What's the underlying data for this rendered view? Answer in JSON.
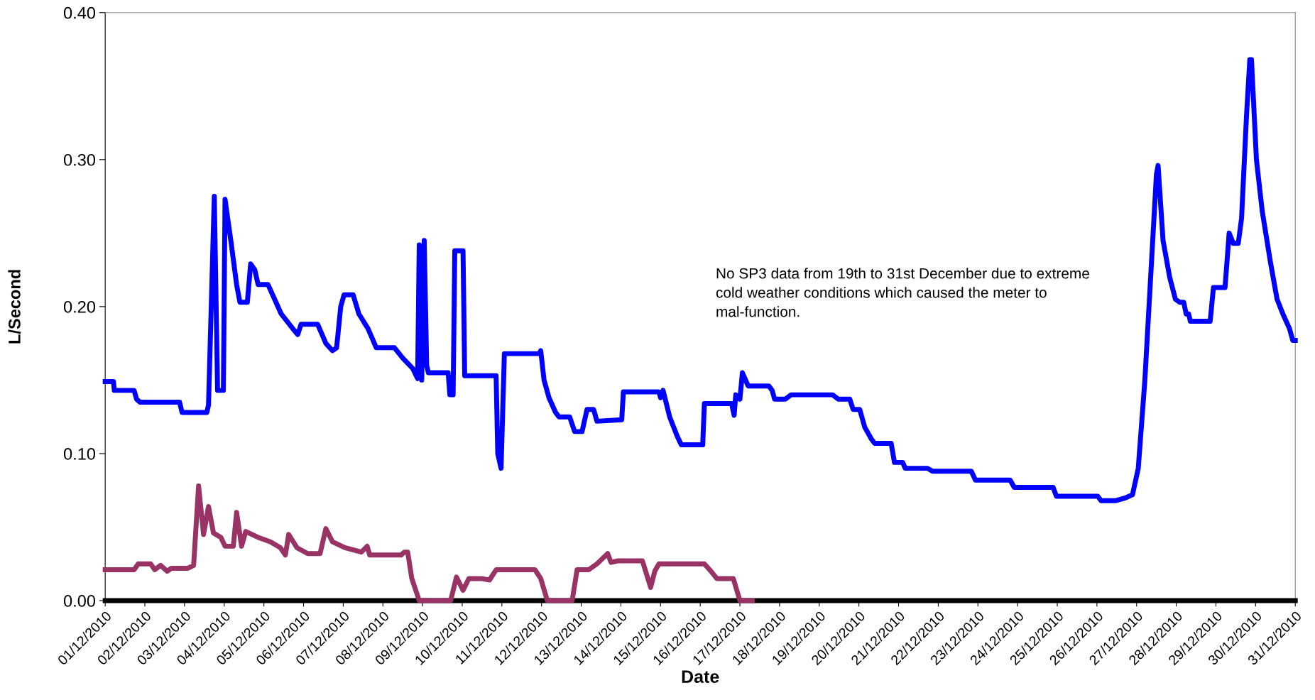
{
  "chart_data": {
    "type": "line",
    "xlabel": "Date",
    "ylabel": "L/Second",
    "annotations": [
      "No SP3 data from 19th to 31st December due to extreme cold weather conditions which caused the meter to mal-function."
    ],
    "xlim": [
      "2010-12-01",
      "2010-12-31"
    ],
    "xticks": [
      {
        "value": "2010-12-01",
        "label": "01/12/2010"
      },
      {
        "value": "2010-12-02",
        "label": "02/12/2010"
      },
      {
        "value": "2010-12-03",
        "label": "03/12/2010"
      },
      {
        "value": "2010-12-04",
        "label": "04/12/2010"
      },
      {
        "value": "2010-12-05",
        "label": "05/12/2010"
      },
      {
        "value": "2010-12-06",
        "label": "06/12/2010"
      },
      {
        "value": "2010-12-07",
        "label": "07/12/2010"
      },
      {
        "value": "2010-12-08",
        "label": "08/12/2010"
      },
      {
        "value": "2010-12-09",
        "label": "09/12/2010"
      },
      {
        "value": "2010-12-10",
        "label": "10/12/2010"
      },
      {
        "value": "2010-12-11",
        "label": "11/12/2010"
      },
      {
        "value": "2010-12-12",
        "label": "12/12/2010"
      },
      {
        "value": "2010-12-13",
        "label": "13/12/2010"
      },
      {
        "value": "2010-12-14",
        "label": "14/12/2010"
      },
      {
        "value": "2010-12-15",
        "label": "15/12/2010"
      },
      {
        "value": "2010-12-16",
        "label": "16/12/2010"
      },
      {
        "value": "2010-12-17",
        "label": "17/12/2010"
      },
      {
        "value": "2010-12-18",
        "label": "18/12/2010"
      },
      {
        "value": "2010-12-19",
        "label": "19/12/2010"
      },
      {
        "value": "2010-12-20",
        "label": "20/12/2010"
      },
      {
        "value": "2010-12-21",
        "label": "21/12/2010"
      },
      {
        "value": "2010-12-22",
        "label": "22/12/2010"
      },
      {
        "value": "2010-12-23",
        "label": "23/12/2010"
      },
      {
        "value": "2010-12-24",
        "label": "24/12/2010"
      },
      {
        "value": "2010-12-25",
        "label": "25/12/2010"
      },
      {
        "value": "2010-12-26",
        "label": "26/12/2010"
      },
      {
        "value": "2010-12-27",
        "label": "27/12/2010"
      },
      {
        "value": "2010-12-28",
        "label": "28/12/2010"
      },
      {
        "value": "2010-12-29",
        "label": "29/12/2010"
      },
      {
        "value": "2010-12-30",
        "label": "30/12/2010"
      },
      {
        "value": "2010-12-31",
        "label": "31/12/2010"
      }
    ],
    "ylim": [
      0,
      0.4
    ],
    "yticks": [
      {
        "value": 0,
        "label": "0.00"
      },
      {
        "value": 0.1,
        "label": "0.10"
      },
      {
        "value": 0.2,
        "label": "0.20"
      },
      {
        "value": 0.3,
        "label": "0.30"
      },
      {
        "value": 0.4,
        "label": "0.40"
      }
    ],
    "grid": false,
    "marker": "none",
    "line_style": "solid",
    "series": [
      {
        "color": "#0000ff",
        "x": [
          "2010-12-01T00:00",
          "2010-12-01T05:00",
          "2010-12-01T05:30",
          "2010-12-01T17:30",
          "2010-12-01T19:00",
          "2010-12-01T21:00",
          "2010-12-02T21:00",
          "2010-12-02T22:30",
          "2010-12-03T13:30",
          "2010-12-03T14:30",
          "2010-12-03T18:00",
          "2010-12-03T20:00",
          "2010-12-03T23:30",
          "2010-12-04T00:30",
          "2010-12-04T04:00",
          "2010-12-04T07:30",
          "2010-12-04T09:30",
          "2010-12-04T14:00",
          "2010-12-04T16:00",
          "2010-12-04T18:30",
          "2010-12-04T20:30",
          "2010-12-05T02:30",
          "2010-12-05T06:30",
          "2010-12-05T10:30",
          "2010-12-05T17:30",
          "2010-12-05T20:30",
          "2010-12-05T22:30",
          "2010-12-06T08:30",
          "2010-12-06T13:30",
          "2010-12-06T17:30",
          "2010-12-06T20:00",
          "2010-12-06T22:30",
          "2010-12-07T00:30",
          "2010-12-07T06:00",
          "2010-12-07T09:30",
          "2010-12-07T15:00",
          "2010-12-07T20:00",
          "2010-12-08T07:00",
          "2010-12-08T12:00",
          "2010-12-08T18:00",
          "2010-12-08T21:00",
          "2010-12-08T22:00",
          "2010-12-08T23:30",
          "2010-12-09T01:00",
          "2010-12-09T02:30",
          "2010-12-09T03:30",
          "2010-12-09T15:30",
          "2010-12-09T16:30",
          "2010-12-09T18:30",
          "2010-12-09T19:30",
          "2010-12-10T00:30",
          "2010-12-10T01:30",
          "2010-12-10T20:30",
          "2010-12-10T21:30",
          "2010-12-10T23:30",
          "2010-12-11T01:30",
          "2010-12-11T22:30",
          "2010-12-11T23:30",
          "2010-12-12T01:30",
          "2010-12-12T04:30",
          "2010-12-12T08:30",
          "2010-12-12T10:30",
          "2010-12-12T17:00",
          "2010-12-12T20:00",
          "2010-12-13T00:30",
          "2010-12-13T03:30",
          "2010-12-13T07:30",
          "2010-12-13T09:30",
          "2010-12-14T00:30",
          "2010-12-14T01:30",
          "2010-12-14T23:00",
          "2010-12-15T00:00",
          "2010-12-15T01:30",
          "2010-12-15T05:30",
          "2010-12-15T10:00",
          "2010-12-15T12:30",
          "2010-12-16T01:30",
          "2010-12-16T02:30",
          "2010-12-16T19:00",
          "2010-12-16T20:30",
          "2010-12-16T21:30",
          "2010-12-17T00:00",
          "2010-12-17T01:30",
          "2010-12-17T05:00",
          "2010-12-17T17:30",
          "2010-12-17T19:30",
          "2010-12-17T21:00",
          "2010-12-18T03:30",
          "2010-12-18T07:00",
          "2010-12-19T08:00",
          "2010-12-19T11:30",
          "2010-12-19T18:30",
          "2010-12-19T20:30",
          "2010-12-20T00:30",
          "2010-12-20T03:30",
          "2010-12-20T07:30",
          "2010-12-20T09:30",
          "2010-12-20T19:30",
          "2010-12-20T21:30",
          "2010-12-21T02:30",
          "2010-12-21T04:00",
          "2010-12-21T17:30",
          "2010-12-21T20:30",
          "2010-12-22T20:00",
          "2010-12-22T22:30",
          "2010-12-23T19:30",
          "2010-12-23T22:00",
          "2010-12-24T21:30",
          "2010-12-24T23:30",
          "2010-12-26T00:30",
          "2010-12-26T02:30",
          "2010-12-26T11:30",
          "2010-12-26T17:30",
          "2010-12-26T21:30",
          "2010-12-27T01:00",
          "2010-12-27T05:00",
          "2010-12-27T08:30",
          "2010-12-27T12:00",
          "2010-12-27T13:00",
          "2010-12-27T16:00",
          "2010-12-27T20:00",
          "2010-12-27T23:30",
          "2010-12-28T02:00",
          "2010-12-28T04:30",
          "2010-12-28T06:00",
          "2010-12-28T07:30",
          "2010-12-28T08:30",
          "2010-12-28T20:30",
          "2010-12-28T22:30",
          "2010-12-29T05:30",
          "2010-12-29T08:00",
          "2010-12-29T10:30",
          "2010-12-29T13:30",
          "2010-12-29T15:30",
          "2010-12-29T18:30",
          "2010-12-29T20:30",
          "2010-12-29T21:30",
          "2010-12-30T00:30",
          "2010-12-30T04:00",
          "2010-12-30T09:00",
          "2010-12-30T13:00",
          "2010-12-30T16:30",
          "2010-12-30T20:30",
          "2010-12-30T22:30",
          "2010-12-31T00:00"
        ],
        "values": [
          0.149,
          0.149,
          0.143,
          0.143,
          0.137,
          0.135,
          0.135,
          0.128,
          0.128,
          0.133,
          0.275,
          0.143,
          0.143,
          0.273,
          0.245,
          0.215,
          0.203,
          0.203,
          0.229,
          0.225,
          0.215,
          0.215,
          0.205,
          0.195,
          0.185,
          0.181,
          0.188,
          0.188,
          0.175,
          0.17,
          0.172,
          0.2,
          0.208,
          0.208,
          0.195,
          0.185,
          0.172,
          0.172,
          0.165,
          0.158,
          0.151,
          0.242,
          0.15,
          0.245,
          0.16,
          0.155,
          0.155,
          0.14,
          0.14,
          0.238,
          0.238,
          0.153,
          0.153,
          0.1,
          0.09,
          0.168,
          0.168,
          0.17,
          0.15,
          0.138,
          0.128,
          0.125,
          0.125,
          0.115,
          0.115,
          0.13,
          0.13,
          0.122,
          0.123,
          0.142,
          0.142,
          0.138,
          0.143,
          0.125,
          0.112,
          0.106,
          0.106,
          0.134,
          0.134,
          0.126,
          0.14,
          0.137,
          0.155,
          0.146,
          0.146,
          0.143,
          0.137,
          0.137,
          0.14,
          0.14,
          0.137,
          0.137,
          0.13,
          0.13,
          0.118,
          0.11,
          0.107,
          0.107,
          0.094,
          0.094,
          0.09,
          0.09,
          0.088,
          0.088,
          0.082,
          0.082,
          0.077,
          0.077,
          0.071,
          0.071,
          0.068,
          0.068,
          0.07,
          0.072,
          0.09,
          0.15,
          0.22,
          0.29,
          0.296,
          0.245,
          0.22,
          0.205,
          0.203,
          0.203,
          0.195,
          0.195,
          0.19,
          0.19,
          0.213,
          0.213,
          0.25,
          0.243,
          0.243,
          0.26,
          0.33,
          0.368,
          0.368,
          0.3,
          0.265,
          0.23,
          0.205,
          0.195,
          0.185,
          0.177,
          0.177
        ]
      },
      {
        "color": "#993366",
        "x": [
          "2010-12-01T00:00",
          "2010-12-01T17:30",
          "2010-12-01T20:00",
          "2010-12-02T03:30",
          "2010-12-02T06:00",
          "2010-12-02T09:30",
          "2010-12-02T13:30",
          "2010-12-02T16:00",
          "2010-12-03T02:00",
          "2010-12-03T05:30",
          "2010-12-03T08:30",
          "2010-12-03T11:30",
          "2010-12-03T14:30",
          "2010-12-03T17:30",
          "2010-12-03T22:00",
          "2010-12-04T00:30",
          "2010-12-04T05:30",
          "2010-12-04T07:30",
          "2010-12-04T10:30",
          "2010-12-04T13:00",
          "2010-12-04T20:30",
          "2010-12-05T04:00",
          "2010-12-05T10:00",
          "2010-12-05T13:00",
          "2010-12-05T15:00",
          "2010-12-05T20:00",
          "2010-12-06T02:30",
          "2010-12-06T10:00",
          "2010-12-06T13:30",
          "2010-12-06T17:30",
          "2010-12-07T01:00",
          "2010-12-07T11:00",
          "2010-12-07T14:30",
          "2010-12-07T16:00",
          "2010-12-08T11:00",
          "2010-12-08T13:00",
          "2010-12-08T15:00",
          "2010-12-08T17:30",
          "2010-12-08T22:00",
          "2010-12-09T17:00",
          "2010-12-09T20:30",
          "2010-12-10T00:30",
          "2010-12-10T04:00",
          "2010-12-10T11:30",
          "2010-12-10T16:30",
          "2010-12-10T20:30",
          "2010-12-11T20:00",
          "2010-12-11T23:30",
          "2010-12-12T03:30",
          "2010-12-12T18:30",
          "2010-12-12T21:30",
          "2010-12-13T04:30",
          "2010-12-13T09:30",
          "2010-12-13T16:00",
          "2010-12-13T18:00",
          "2010-12-13T22:00",
          "2010-12-14T13:00",
          "2010-12-14T18:00",
          "2010-12-14T20:30",
          "2010-12-14T23:00",
          "2010-12-16T02:30",
          "2010-12-16T06:30",
          "2010-12-16T10:00",
          "2010-12-16T20:00",
          "2010-12-17T00:00",
          "2010-12-17T07:30"
        ],
        "values": [
          0.021,
          0.021,
          0.025,
          0.025,
          0.021,
          0.024,
          0.02,
          0.022,
          0.022,
          0.024,
          0.078,
          0.045,
          0.064,
          0.046,
          0.043,
          0.037,
          0.037,
          0.06,
          0.037,
          0.047,
          0.043,
          0.04,
          0.036,
          0.031,
          0.045,
          0.036,
          0.032,
          0.032,
          0.049,
          0.04,
          0.036,
          0.033,
          0.037,
          0.031,
          0.031,
          0.033,
          0.033,
          0.015,
          0.0,
          0.0,
          0.016,
          0.007,
          0.015,
          0.015,
          0.014,
          0.021,
          0.021,
          0.015,
          0.0,
          0.0,
          0.021,
          0.021,
          0.025,
          0.032,
          0.026,
          0.027,
          0.027,
          0.009,
          0.02,
          0.025,
          0.025,
          0.02,
          0.015,
          0.015,
          0.0,
          0.0
        ]
      }
    ]
  }
}
